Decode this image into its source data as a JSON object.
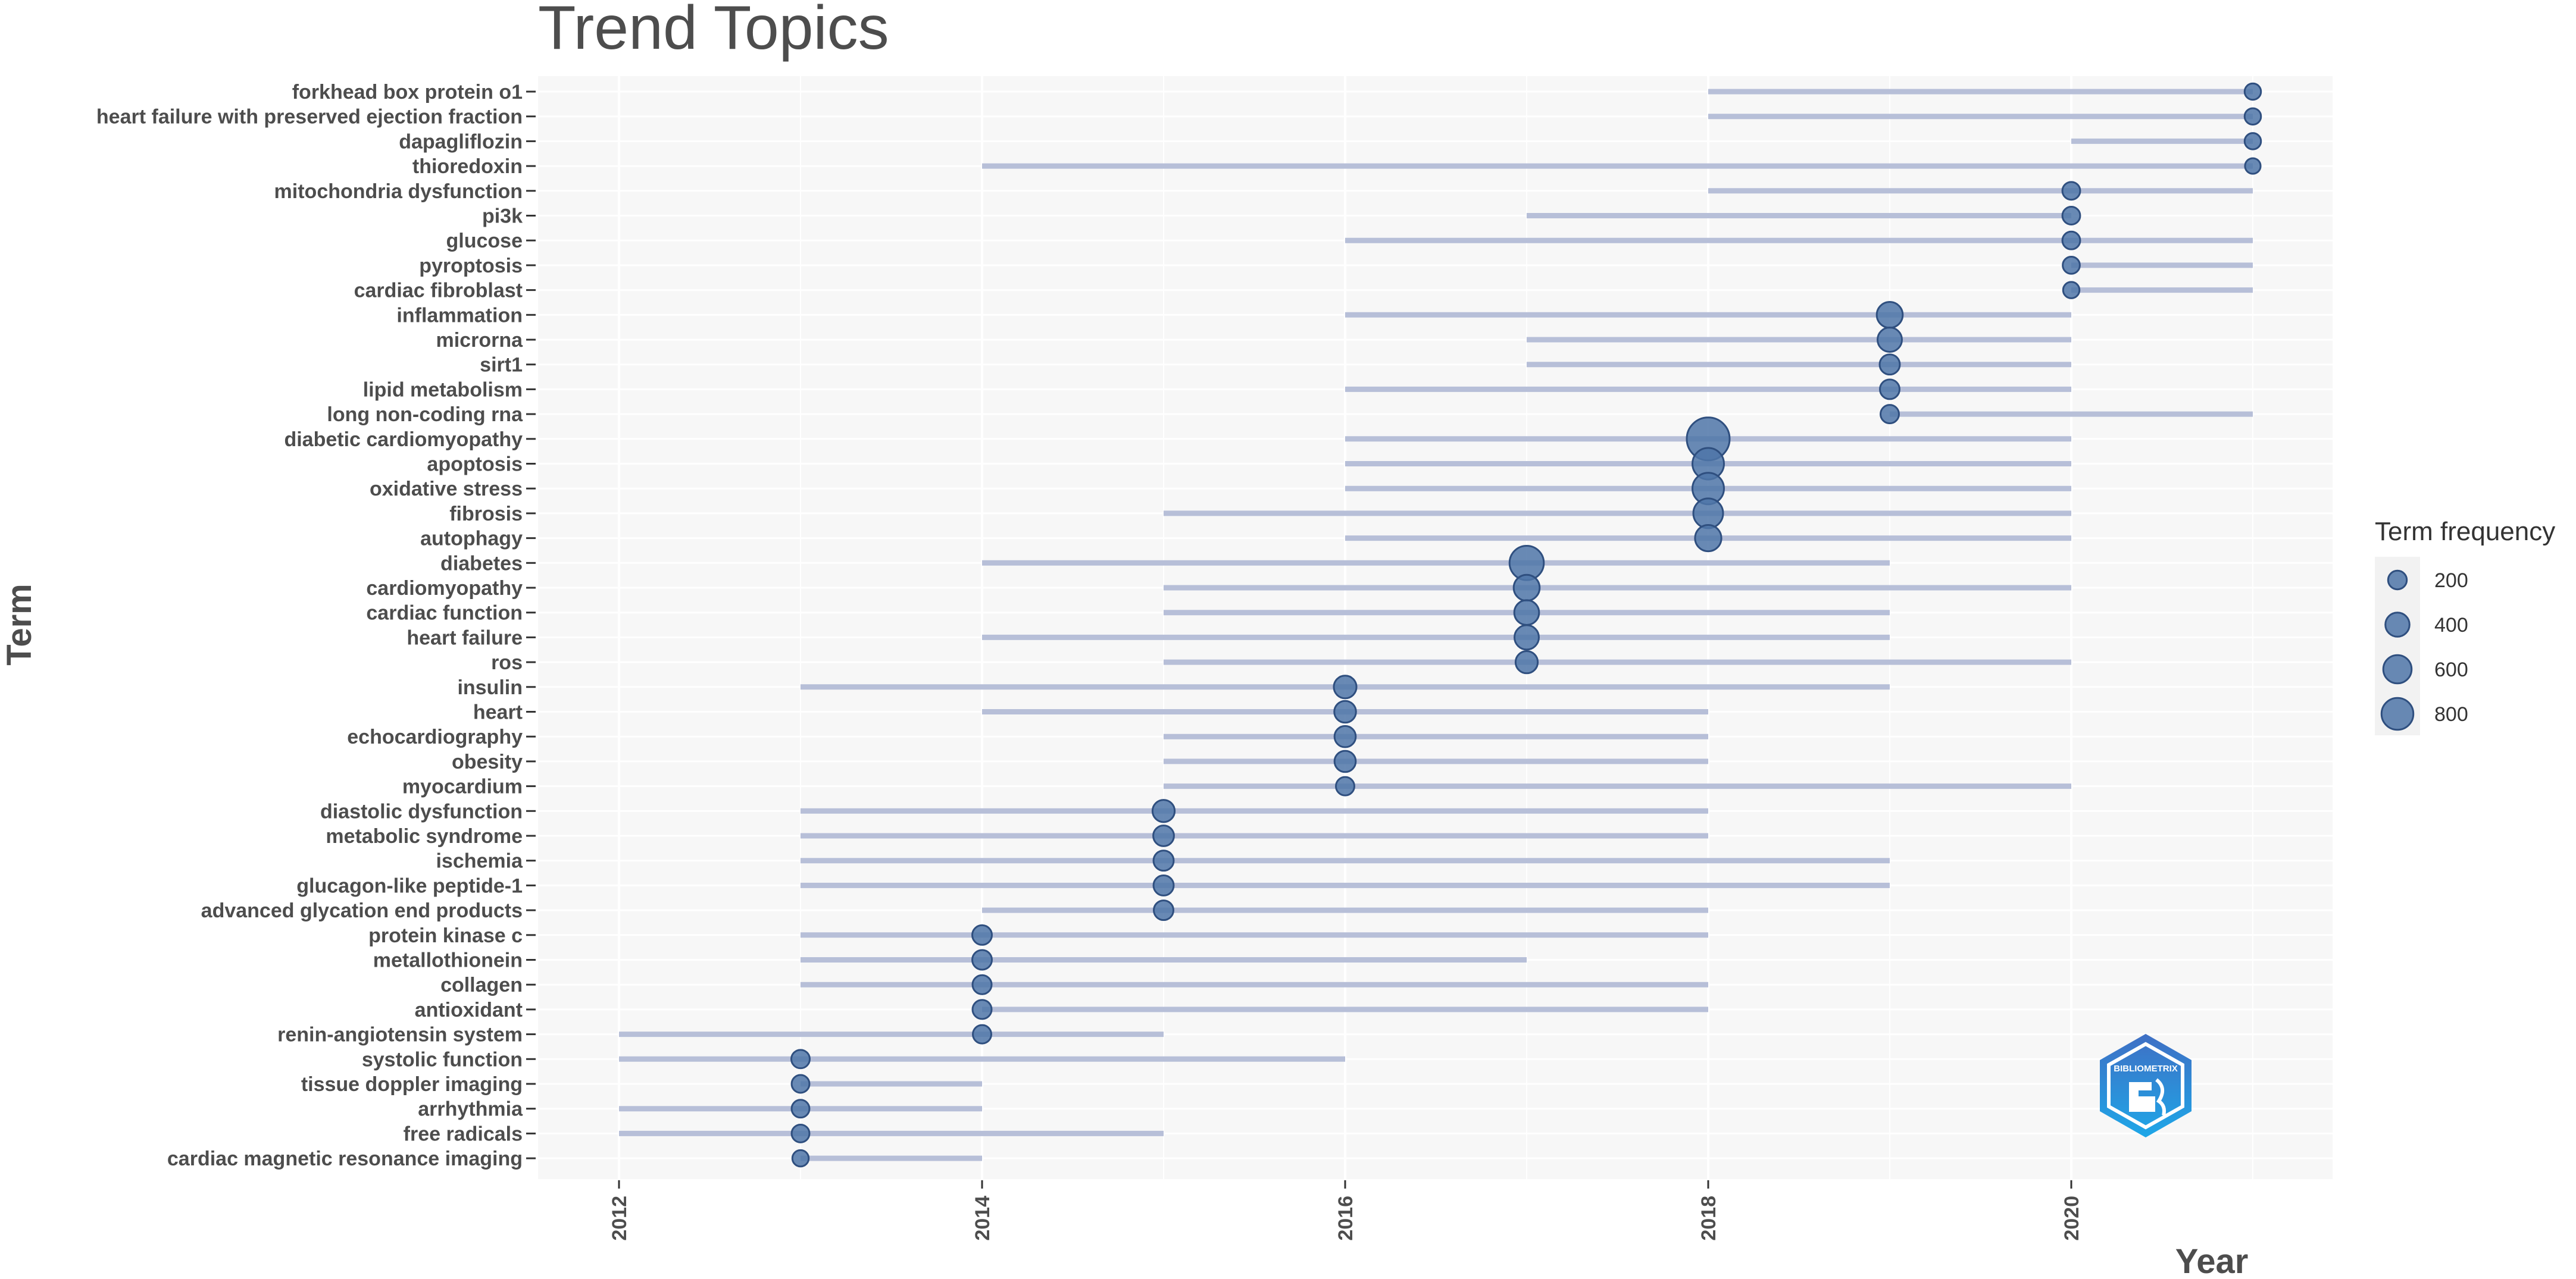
{
  "chart_data": {
    "type": "scatter",
    "title": "Trend Topics",
    "xlabel": "Year",
    "ylabel": "Term",
    "xlim": [
      2011.55,
      2021.45
    ],
    "xticks": [
      2012,
      2014,
      2016,
      2018,
      2020
    ],
    "legend": {
      "title": "Term frequency",
      "position": "right",
      "sizes": [
        200,
        400,
        600,
        800
      ],
      "labels": [
        "200",
        "400",
        "600",
        "800"
      ]
    },
    "colors": {
      "point": "#4f76a8",
      "segment": "#b7bfd8",
      "panel": "#f7f7f7",
      "grid": "#ffffff"
    },
    "terms": [
      {
        "term": "forkhead box protein o1",
        "start": 2018,
        "end": 2021,
        "median": 2021,
        "freq": 60
      },
      {
        "term": "heart failure with preserved ejection fraction",
        "start": 2018,
        "end": 2021,
        "median": 2021,
        "freq": 60
      },
      {
        "term": "dapagliflozin",
        "start": 2020,
        "end": 2021,
        "median": 2021,
        "freq": 60
      },
      {
        "term": "thioredoxin",
        "start": 2014,
        "end": 2021,
        "median": 2021,
        "freq": 50
      },
      {
        "term": "mitochondria dysfunction",
        "start": 2018,
        "end": 2021,
        "median": 2020,
        "freq": 80
      },
      {
        "term": "pi3k",
        "start": 2017,
        "end": 2020,
        "median": 2020,
        "freq": 80
      },
      {
        "term": "glucose",
        "start": 2016,
        "end": 2021,
        "median": 2020,
        "freq": 80
      },
      {
        "term": "pyroptosis",
        "start": 2020,
        "end": 2021,
        "median": 2020,
        "freq": 70
      },
      {
        "term": "cardiac fibroblast",
        "start": 2020,
        "end": 2021,
        "median": 2020,
        "freq": 60
      },
      {
        "term": "inflammation",
        "start": 2016,
        "end": 2020,
        "median": 2019,
        "freq": 250
      },
      {
        "term": "microrna",
        "start": 2017,
        "end": 2020,
        "median": 2019,
        "freq": 210
      },
      {
        "term": "sirt1",
        "start": 2017,
        "end": 2020,
        "median": 2019,
        "freq": 120
      },
      {
        "term": "lipid metabolism",
        "start": 2016,
        "end": 2020,
        "median": 2019,
        "freq": 110
      },
      {
        "term": "long non-coding rna",
        "start": 2019,
        "end": 2021,
        "median": 2019,
        "freq": 90
      },
      {
        "term": "diabetic cardiomyopathy",
        "start": 2016,
        "end": 2020,
        "median": 2018,
        "freq": 900
      },
      {
        "term": "apoptosis",
        "start": 2016,
        "end": 2020,
        "median": 2018,
        "freq": 420
      },
      {
        "term": "oxidative stress",
        "start": 2016,
        "end": 2020,
        "median": 2018,
        "freq": 420
      },
      {
        "term": "fibrosis",
        "start": 2015,
        "end": 2020,
        "median": 2018,
        "freq": 360
      },
      {
        "term": "autophagy",
        "start": 2016,
        "end": 2020,
        "median": 2018,
        "freq": 260
      },
      {
        "term": "diabetes",
        "start": 2014,
        "end": 2019,
        "median": 2017,
        "freq": 520
      },
      {
        "term": "cardiomyopathy",
        "start": 2015,
        "end": 2020,
        "median": 2017,
        "freq": 250
      },
      {
        "term": "cardiac function",
        "start": 2015,
        "end": 2019,
        "median": 2017,
        "freq": 220
      },
      {
        "term": "heart failure",
        "start": 2014,
        "end": 2019,
        "median": 2017,
        "freq": 210
      },
      {
        "term": "ros",
        "start": 2015,
        "end": 2020,
        "median": 2017,
        "freq": 160
      },
      {
        "term": "insulin",
        "start": 2013,
        "end": 2019,
        "median": 2016,
        "freq": 170
      },
      {
        "term": "heart",
        "start": 2014,
        "end": 2018,
        "median": 2016,
        "freq": 150
      },
      {
        "term": "echocardiography",
        "start": 2015,
        "end": 2018,
        "median": 2016,
        "freq": 140
      },
      {
        "term": "obesity",
        "start": 2015,
        "end": 2018,
        "median": 2016,
        "freq": 140
      },
      {
        "term": "myocardium",
        "start": 2015,
        "end": 2020,
        "median": 2016,
        "freq": 90
      },
      {
        "term": "diastolic dysfunction",
        "start": 2013,
        "end": 2018,
        "median": 2015,
        "freq": 160
      },
      {
        "term": "metabolic syndrome",
        "start": 2013,
        "end": 2018,
        "median": 2015,
        "freq": 130
      },
      {
        "term": "ischemia",
        "start": 2013,
        "end": 2019,
        "median": 2015,
        "freq": 120
      },
      {
        "term": "glucagon-like peptide-1",
        "start": 2013,
        "end": 2019,
        "median": 2015,
        "freq": 120
      },
      {
        "term": "advanced glycation end products",
        "start": 2014,
        "end": 2018,
        "median": 2015,
        "freq": 110
      },
      {
        "term": "protein kinase c",
        "start": 2013,
        "end": 2018,
        "median": 2014,
        "freq": 110
      },
      {
        "term": "metallothionein",
        "start": 2013,
        "end": 2017,
        "median": 2014,
        "freq": 110
      },
      {
        "term": "collagen",
        "start": 2013,
        "end": 2018,
        "median": 2014,
        "freq": 100
      },
      {
        "term": "antioxidant",
        "start": 2014,
        "end": 2018,
        "median": 2014,
        "freq": 100
      },
      {
        "term": "renin-angiotensin system",
        "start": 2012,
        "end": 2015,
        "median": 2014,
        "freq": 90
      },
      {
        "term": "systolic function",
        "start": 2012,
        "end": 2016,
        "median": 2013,
        "freq": 90
      },
      {
        "term": "tissue doppler imaging",
        "start": 2013,
        "end": 2014,
        "median": 2013,
        "freq": 80
      },
      {
        "term": "arrhythmia",
        "start": 2012,
        "end": 2014,
        "median": 2013,
        "freq": 80
      },
      {
        "term": "free radicals",
        "start": 2012,
        "end": 2015,
        "median": 2013,
        "freq": 80
      },
      {
        "term": "cardiac magnetic resonance imaging",
        "start": 2013,
        "end": 2014,
        "median": 2013,
        "freq": 60
      }
    ]
  },
  "logo": {
    "text": "BIBLIOMETRIX",
    "colors": [
      "#3f6fc4",
      "#1ea7e8"
    ]
  }
}
